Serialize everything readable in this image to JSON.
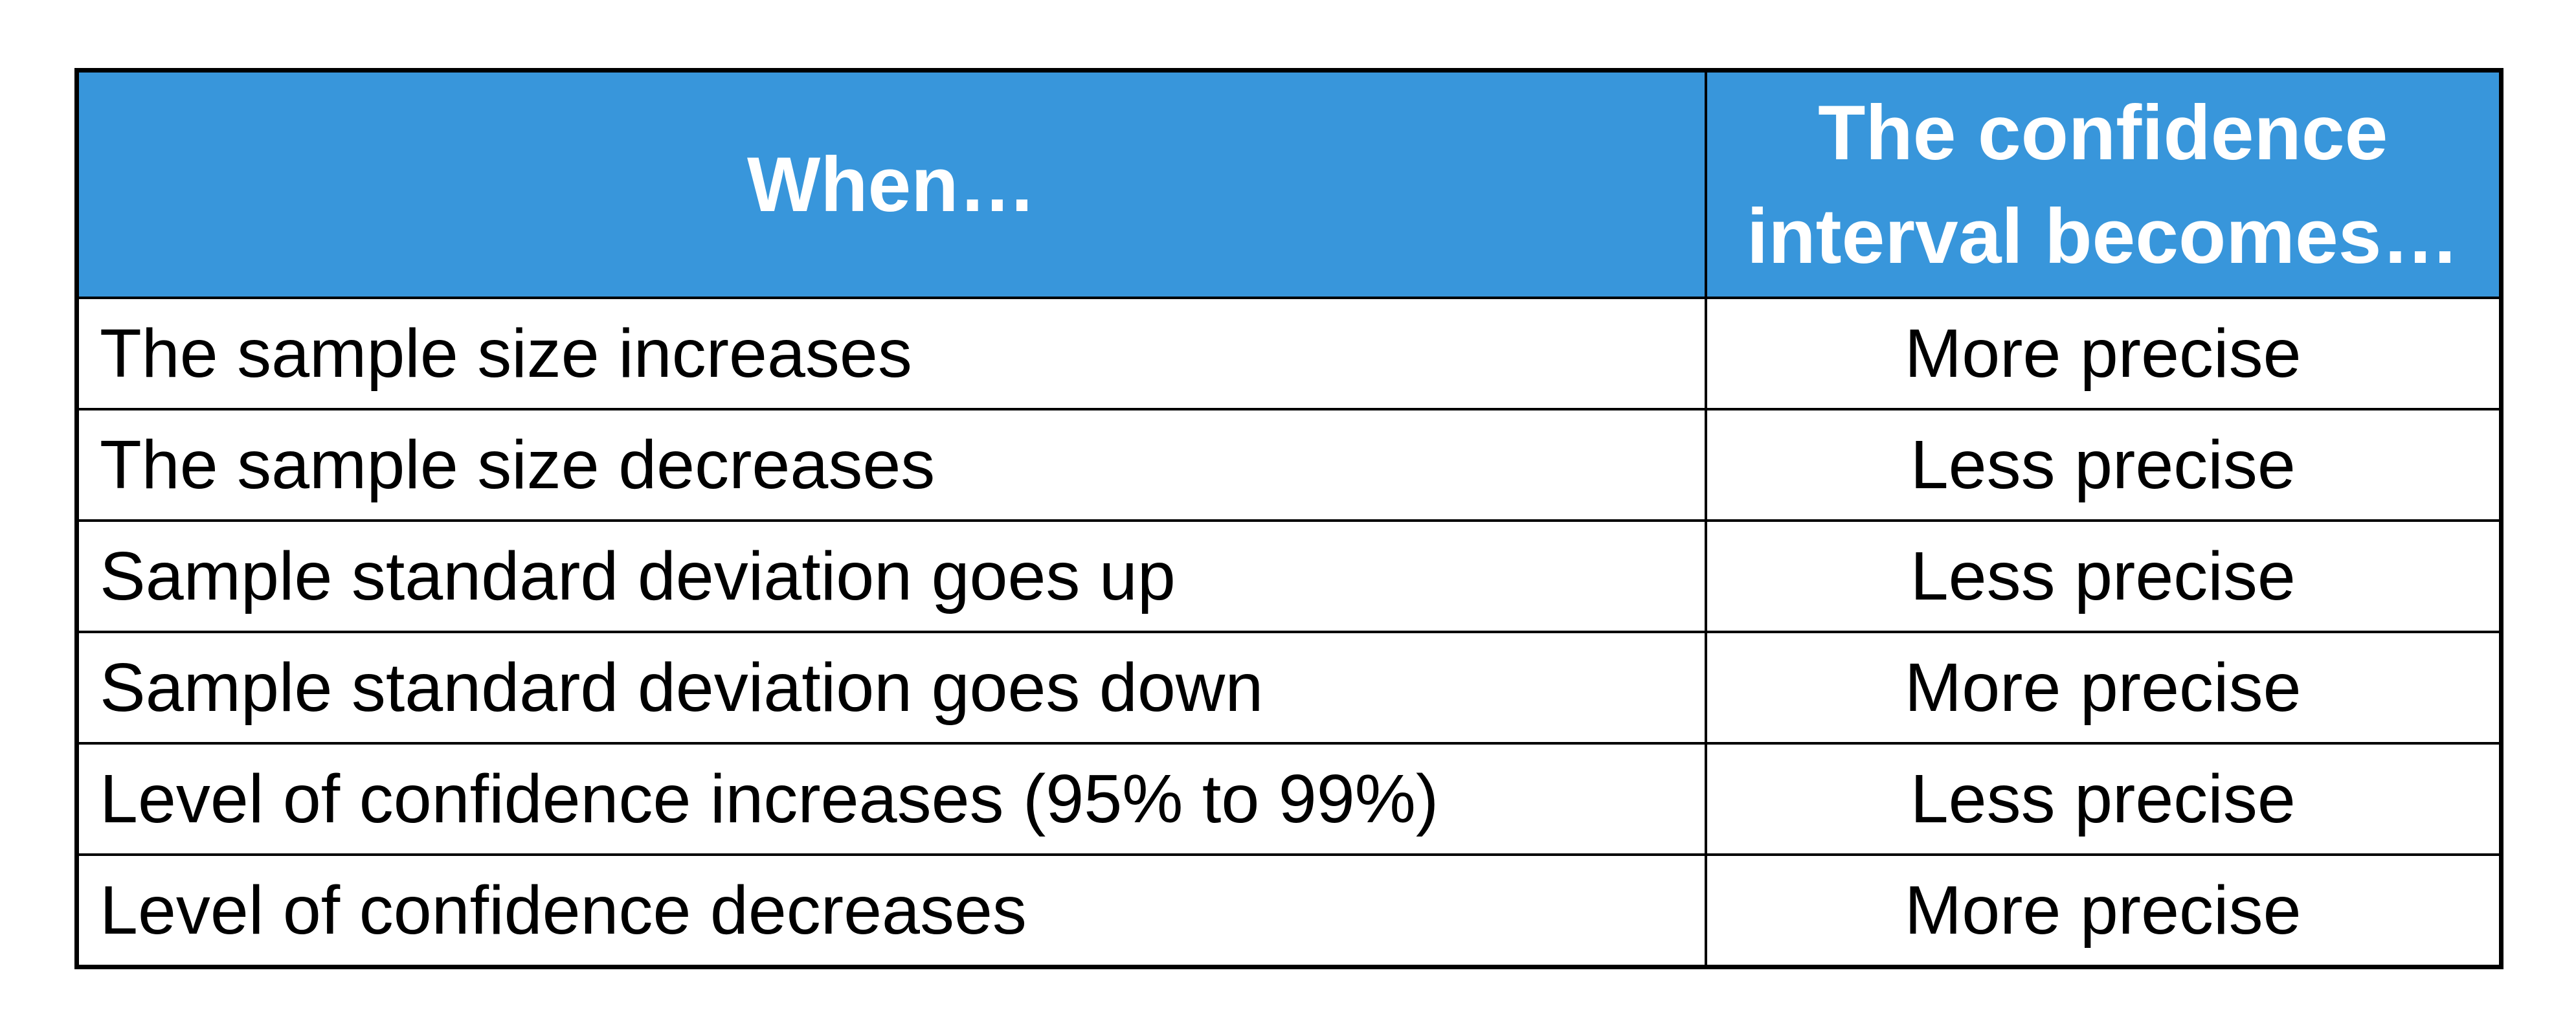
{
  "table": {
    "headers": {
      "when": "When…",
      "result": "The confidence interval becomes…"
    },
    "rows": [
      {
        "when": "The sample size increases",
        "result": "More precise"
      },
      {
        "when": "The sample size decreases",
        "result": "Less precise"
      },
      {
        "when": "Sample standard deviation goes up",
        "result": "Less precise"
      },
      {
        "when": "Sample standard deviation goes down",
        "result": "More precise"
      },
      {
        "when": "Level of confidence increases (95% to 99%)",
        "result": "Less precise"
      },
      {
        "when": "Level of confidence decreases",
        "result": "More precise"
      }
    ]
  },
  "colors": {
    "header_bg": "#3896db",
    "header_text": "#ffffff",
    "border": "#000000"
  }
}
